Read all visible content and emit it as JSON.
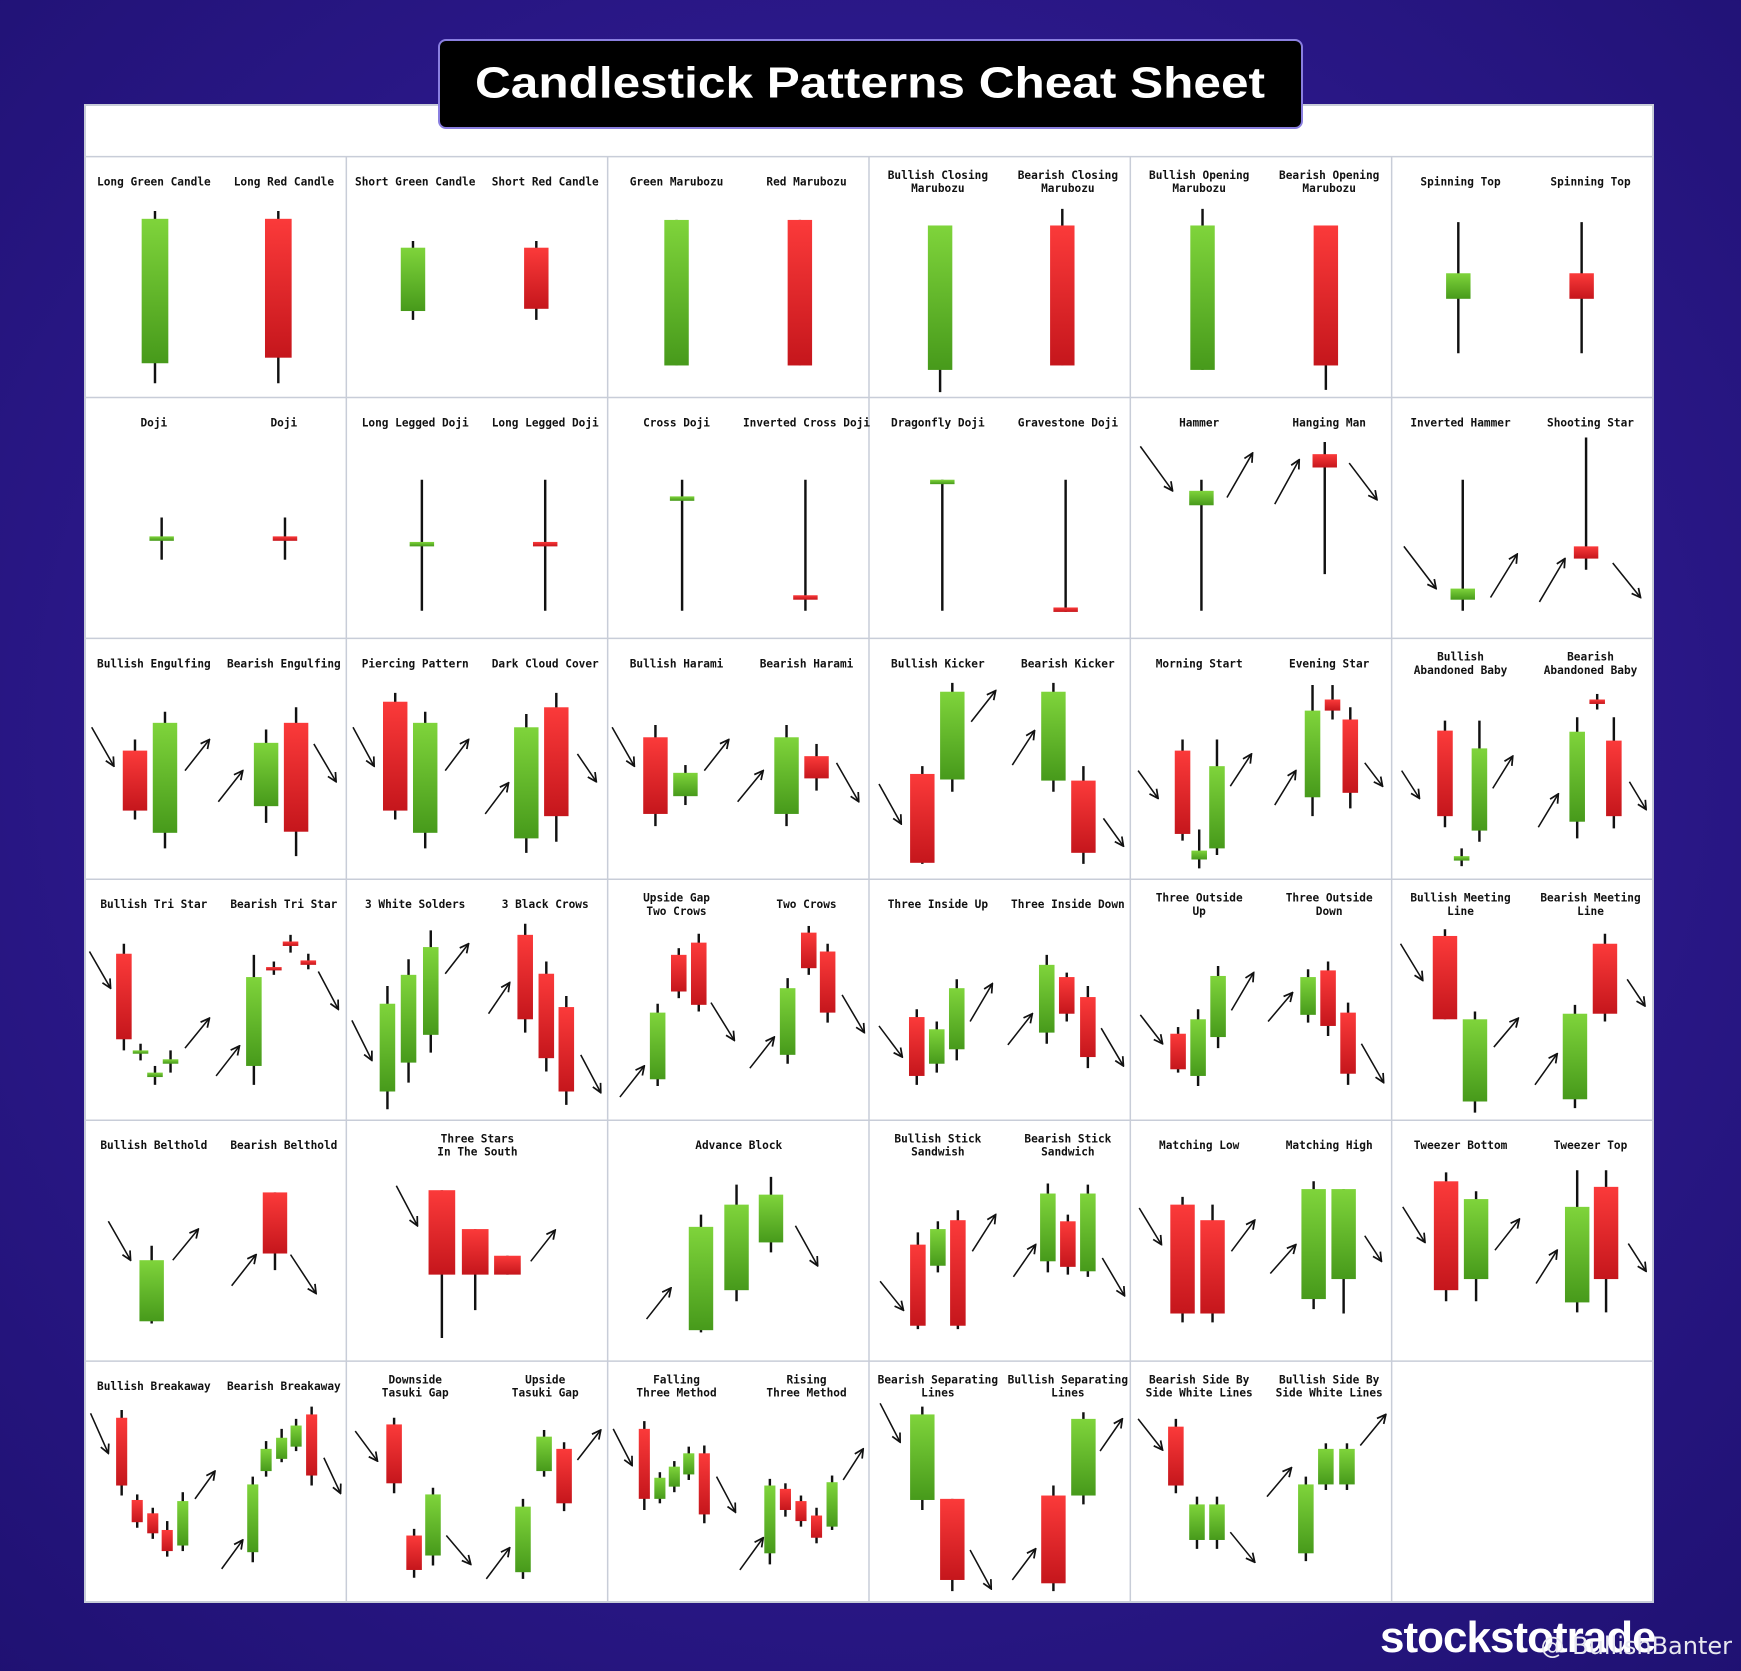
{
  "title": "Candlestick Patterns Cheat Sheet",
  "cells": [
    [
      [
        "Long Green Candle"
      ],
      [
        "Long Red Candle"
      ]
    ],
    [
      [
        "Short Green Candle"
      ],
      [
        "Short Red Candle"
      ]
    ],
    [
      [
        "Green Marubozu"
      ],
      [
        "Red Marubozu"
      ]
    ],
    [
      [
        "Bullish Closing",
        "Marubozu"
      ],
      [
        "Bearish Closing",
        "Marubozu"
      ]
    ],
    [
      [
        "Bullish Opening",
        "Marubozu"
      ],
      [
        "Bearish Opening",
        "Marubozu"
      ]
    ],
    [
      [
        "Spinning Top"
      ],
      [
        "Spinning Top"
      ]
    ],
    [
      [
        "Doji"
      ],
      [
        "Doji"
      ]
    ],
    [
      [
        "Long Legged Doji"
      ],
      [
        "Long Legged Doji"
      ]
    ],
    [
      [
        "Cross Doji"
      ],
      [
        "Inverted Cross Doji"
      ]
    ],
    [
      [
        "Dragonfly Doji"
      ],
      [
        "Gravestone Doji"
      ]
    ],
    [
      [
        "Hammer"
      ],
      [
        "Hanging Man"
      ]
    ],
    [
      [
        "Inverted Hammer"
      ],
      [
        "Shooting Star"
      ]
    ],
    [
      [
        "Bullish Engulfing"
      ],
      [
        "Bearish Engulfing"
      ]
    ],
    [
      [
        "Piercing Pattern"
      ],
      [
        "Dark Cloud Cover"
      ]
    ],
    [
      [
        "Bullish Harami"
      ],
      [
        "Bearish Harami"
      ]
    ],
    [
      [
        "Bullish Kicker"
      ],
      [
        "Bearish Kicker"
      ]
    ],
    [
      [
        "Morning Start"
      ],
      [
        "Evening Star"
      ]
    ],
    [
      [
        "Bullish",
        "Abandoned Baby"
      ],
      [
        "Bearish",
        "Abandoned Baby"
      ]
    ],
    [
      [
        "Bullish Tri Star"
      ],
      [
        "Bearish Tri Star"
      ]
    ],
    [
      [
        "3 White Solders"
      ],
      [
        "3 Black Crows"
      ]
    ],
    [
      [
        "Upside Gap",
        "Two Crows"
      ],
      [
        "Two Crows"
      ]
    ],
    [
      [
        "Three Inside Up"
      ],
      [
        "Three Inside Down"
      ]
    ],
    [
      [
        "Three Outside",
        "Up"
      ],
      [
        "Three Outside",
        "Down"
      ]
    ],
    [
      [
        "Bullish Meeting",
        "Line"
      ],
      [
        "Bearish Meeting",
        "Line"
      ]
    ],
    [
      [
        "Bullish Belthold"
      ],
      [
        "Bearish Belthold"
      ]
    ],
    [
      [
        "Three Stars",
        "In The South"
      ]
    ],
    [
      [
        "Advance Block"
      ]
    ],
    [
      [
        "Bullish Stick",
        "Sandwish"
      ],
      [
        "Bearish Stick",
        "Sandwich"
      ]
    ],
    [
      [
        "Matching Low"
      ],
      [
        "Matching High"
      ]
    ],
    [
      [
        "Tweezer Bottom"
      ],
      [
        "Tweezer Top"
      ]
    ],
    [
      [
        "Bullish Breakaway"
      ],
      [
        "Bearish Breakaway"
      ]
    ],
    [
      [
        "Downside",
        "Tasuki Gap"
      ],
      [
        "Upside",
        "Tasuki Gap"
      ]
    ],
    [
      [
        "Falling",
        "Three Method"
      ],
      [
        "Rising",
        "Three Method"
      ]
    ],
    [
      [
        "Bearish Separating",
        "Lines"
      ],
      [
        "Bullish Separating",
        "Lines"
      ]
    ],
    [
      [
        "Bearish Side By",
        "Side White Lines"
      ],
      [
        "Bullish Side By",
        "Side White Lines"
      ]
    ],
    []
  ],
  "watermark": "stockstotrade",
  "credit": "@ BullishBanter"
}
